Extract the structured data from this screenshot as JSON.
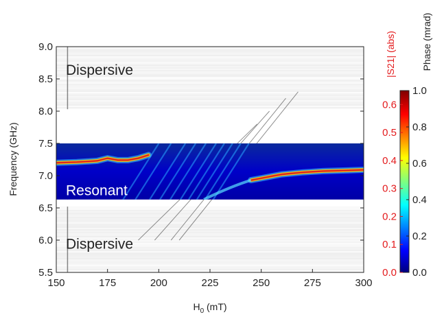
{
  "chart_data": {
    "type": "heatmap",
    "xlabel": {
      "main": "H",
      "sub": "0",
      "unit": " (mT)"
    },
    "ylabel": "Frequency (GHz)",
    "xlim": [
      150,
      300
    ],
    "ylim": [
      5.5,
      9.0
    ],
    "xticks": [
      "150",
      "175",
      "200",
      "225",
      "250",
      "275",
      "300"
    ],
    "yticks": [
      "5.5",
      "6.0",
      "6.5",
      "7.0",
      "7.5",
      "8.0",
      "8.5",
      "9.0"
    ],
    "regions": [
      {
        "label": "Dispersive",
        "f_range": [
          8.03,
          9.0
        ],
        "color": "#222222"
      },
      {
        "label": "Resonant",
        "f_range": [
          6.63,
          7.5
        ],
        "color": "#ffffff"
      },
      {
        "label": "Dispersive",
        "f_range": [
          5.5,
          6.52
        ],
        "color": "#222222"
      }
    ],
    "colorbar_s21": {
      "label": "|S21| (abs)",
      "ticks": [
        "0.0",
        "0.1",
        "0.2",
        "0.3",
        "0.4",
        "0.5",
        "0.6"
      ],
      "range": [
        0,
        0.65
      ],
      "color": "#e31a1c"
    },
    "colorbar_phase": {
      "label": "Phase (mrad)",
      "ticks": [
        "0.0",
        "0.2",
        "0.4",
        "0.6",
        "0.8",
        "1.0"
      ],
      "range": [
        0,
        1.0
      ]
    },
    "cavity_mode": {
      "H": [
        150,
        160,
        170,
        175,
        180,
        185,
        190,
        195,
        245,
        250,
        255,
        260,
        270,
        280,
        290,
        300
      ],
      "f": [
        7.2,
        7.21,
        7.23,
        7.27,
        7.24,
        7.24,
        7.27,
        7.32,
        6.93,
        6.96,
        6.99,
        7.02,
        7.05,
        7.07,
        7.08,
        7.09
      ]
    },
    "magnon_lines": [
      {
        "H": [
          210,
          268
        ],
        "f": [
          6.0,
          8.3
        ]
      },
      {
        "H": [
          206,
          262
        ],
        "f": [
          6.0,
          8.2
        ]
      },
      {
        "H": [
          198,
          254
        ],
        "f": [
          6.0,
          8.0
        ]
      },
      {
        "H": [
          190,
          248
        ],
        "f": [
          6.0,
          7.8
        ]
      }
    ]
  }
}
